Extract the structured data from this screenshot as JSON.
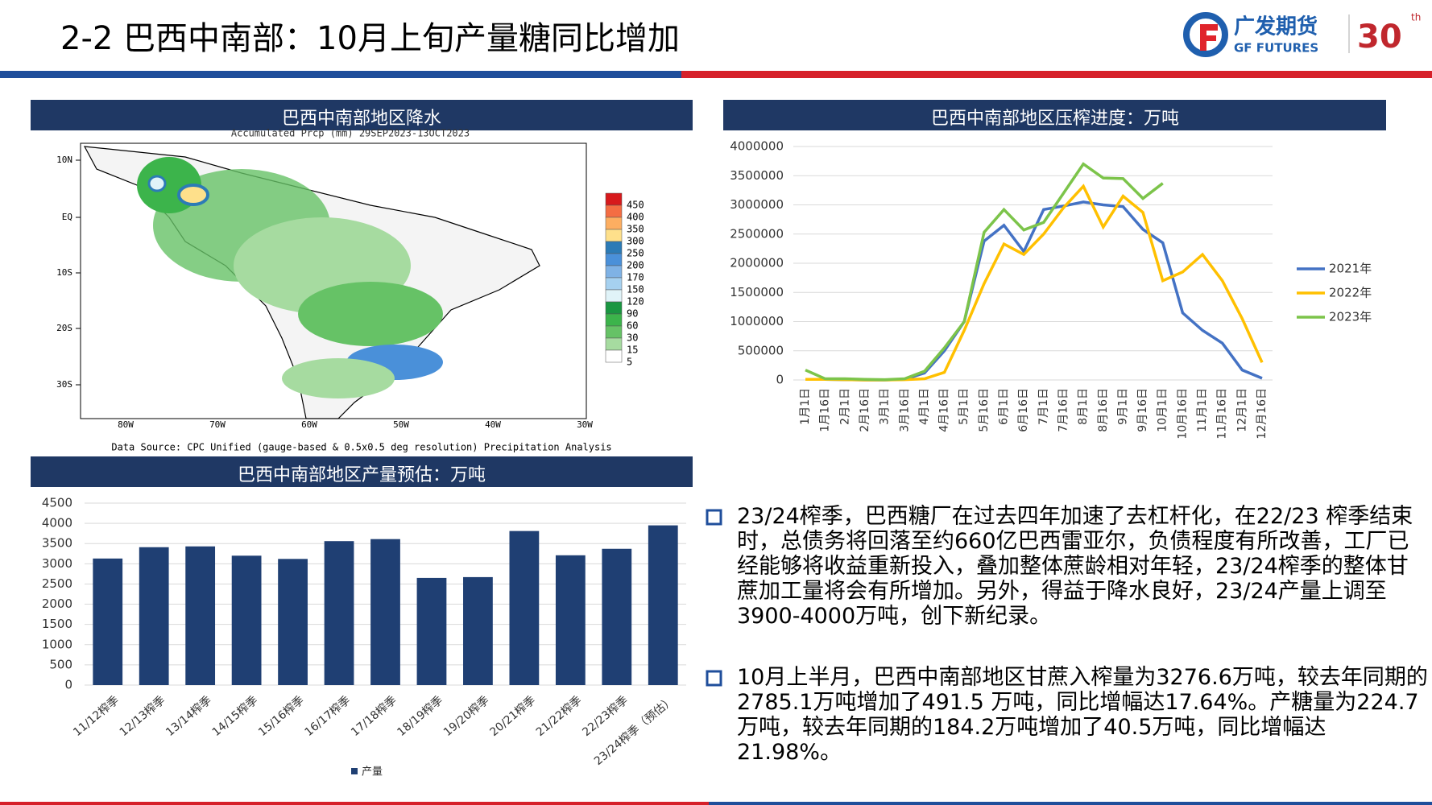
{
  "header": {
    "title": "2-2 巴西中南部：10月上旬产量糖同比增加",
    "logo": "广发期货",
    "logo_en": "GF FUTURES",
    "anniversary": "30",
    "anniversary_suffix": "th"
  },
  "map": {
    "title": "巴西中南部地区降水",
    "subtitle": "Accumulated Prcp (mm) 29SEP2023-13OCT2023",
    "lat_labels": [
      "10N",
      "EQ",
      "10S",
      "20S",
      "30S"
    ],
    "lon_labels": [
      "80W",
      "70W",
      "60W",
      "50W",
      "40W",
      "30W"
    ],
    "legend": [
      "450",
      "400",
      "350",
      "300",
      "250",
      "200",
      "170",
      "150",
      "120",
      "90",
      "60",
      "30",
      "15",
      "5"
    ],
    "legend_colors": [
      "#d7191c",
      "#f46d43",
      "#fdae61",
      "#fee08b",
      "#2c7bb6",
      "#4a90d9",
      "#7fb2e5",
      "#a6d1f0",
      "#e0f3f8",
      "#1a9641",
      "#3cb44b",
      "#66c266",
      "#a6dba0",
      "#ffffff"
    ],
    "source": "Data Source: CPC Unified (gauge-based & 0.5x0.5 deg resolution) Precipitation Analysis"
  },
  "chart_data": [
    {
      "type": "line",
      "title": "巴西中南部地区压榨进度：万吨",
      "categories": [
        "1月1日",
        "1月16日",
        "2月1日",
        "2月16日",
        "3月1日",
        "3月16日",
        "4月1日",
        "4月16日",
        "5月1日",
        "5月16日",
        "6月1日",
        "6月16日",
        "7月1日",
        "7月16日",
        "8月1日",
        "8月16日",
        "9月1日",
        "9月16日",
        "10月1日",
        "10月16日",
        "11月1日",
        "11月16日",
        "12月1日",
        "12月16日"
      ],
      "series": [
        {
          "name": "2021年",
          "color": "#4472c4",
          "values": [
            10000,
            10000,
            5000,
            0,
            0,
            10000,
            120000,
            500000,
            1000000,
            2380000,
            2650000,
            2200000,
            2920000,
            2980000,
            3050000,
            3000000,
            2970000,
            2580000,
            2350000,
            1150000,
            850000,
            630000,
            170000,
            30000
          ]
        },
        {
          "name": "2022年",
          "color": "#ffc000",
          "values": [
            10000,
            10000,
            5000,
            0,
            0,
            5000,
            20000,
            130000,
            850000,
            1650000,
            2330000,
            2150000,
            2500000,
            2950000,
            3320000,
            2620000,
            3150000,
            2870000,
            1700000,
            1850000,
            2150000,
            1700000,
            1050000,
            300000
          ]
        },
        {
          "name": "2023年",
          "color": "#7cc44a",
          "values": [
            170000,
            20000,
            20000,
            10000,
            5000,
            20000,
            150000,
            550000,
            1000000,
            2530000,
            2920000,
            2570000,
            2700000,
            3200000,
            3700000,
            3460000,
            3450000,
            3110000,
            3370000,
            null,
            null,
            null,
            null,
            null
          ]
        }
      ],
      "ylim": [
        0,
        4000000
      ],
      "yticks": [
        0,
        500000,
        1000000,
        1500000,
        2000000,
        2500000,
        3000000,
        3500000,
        4000000
      ],
      "grid": true,
      "legend": "right"
    },
    {
      "type": "bar",
      "title": "巴西中南部地区产量预估：万吨",
      "categories": [
        "11/12榨季",
        "12/13榨季",
        "13/14榨季",
        "14/15榨季",
        "15/16榨季",
        "16/17榨季",
        "17/18榨季",
        "18/19榨季",
        "19/20榨季",
        "20/21榨季",
        "21/22榨季",
        "22/23榨季",
        "23/24榨季（预估）"
      ],
      "series": [
        {
          "name": "产量",
          "color": "#1f3f73",
          "values": [
            3130,
            3410,
            3430,
            3200,
            3120,
            3560,
            3610,
            2650,
            2670,
            3810,
            3210,
            3370,
            3950
          ]
        }
      ],
      "ylim": [
        0,
        4500
      ],
      "yticks": [
        0,
        500,
        1000,
        1500,
        2000,
        2500,
        3000,
        3500,
        4000,
        4500
      ],
      "grid": true,
      "legend": "bottom"
    }
  ],
  "bullets": [
    "23/24榨季，巴西糖厂在过去四年加速了去杠杆化，在22/23 榨季结束时，总债务将回落至约660亿巴西雷亚尔，负债程度有所改善，工厂已经能够将收益重新投入，叠加整体蔗龄相对年轻，23/24榨季的整体甘蔗加工量将会有所增加。另外，得益于降水良好，23/24产量上调至3900-4000万吨，创下新纪录。",
    "10月上半月，巴西中南部地区甘蔗入榨量为3276.6万吨，较去年同期的2785.1万吨增加了491.5 万吨，同比增幅达17.64%。产糖量为224.7万吨，较去年同期的184.2万吨增加了40.5万吨，同比增幅达21.98%。"
  ]
}
